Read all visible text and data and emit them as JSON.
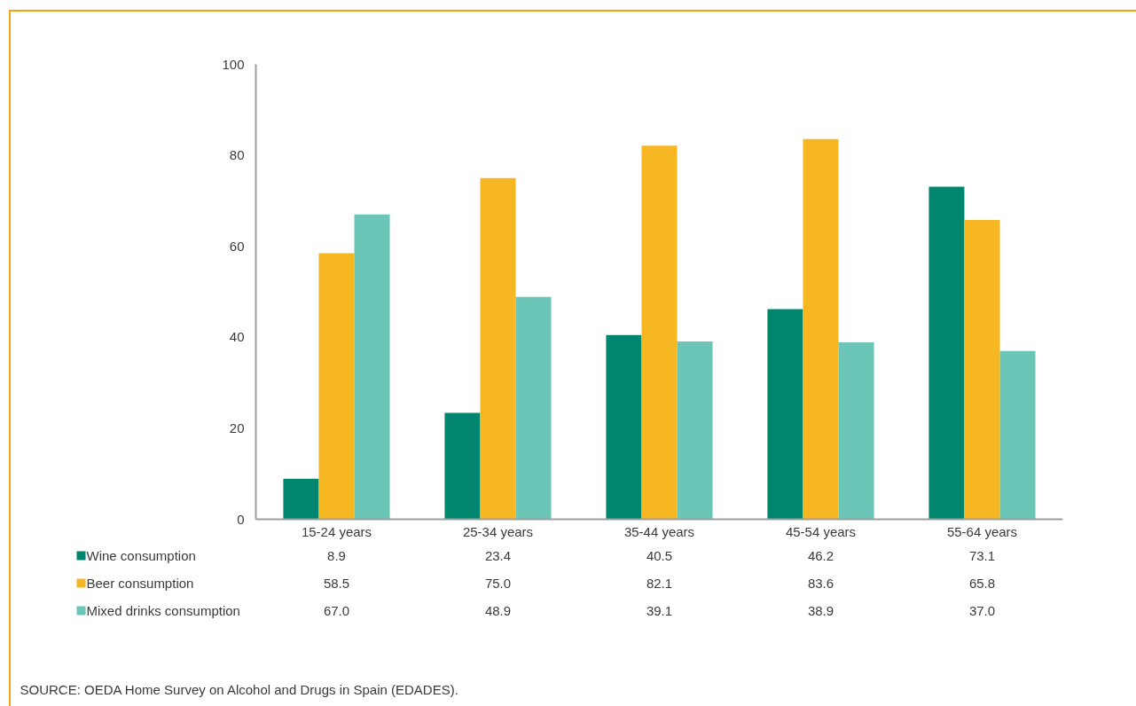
{
  "chart_data": {
    "type": "bar",
    "categories": [
      "15-24 years",
      "25-34 years",
      "35-44 years",
      "45-54 years",
      "55-64 years"
    ],
    "series": [
      {
        "name": "Wine consumption",
        "color": "#00866f",
        "values": [
          8.9,
          23.4,
          40.5,
          46.2,
          73.1
        ],
        "value_labels": [
          "8.9",
          "23.4",
          "40.5",
          "46.2",
          "73.1"
        ]
      },
      {
        "name": "Beer consumption",
        "color": "#f6b723",
        "values": [
          58.5,
          75.0,
          82.1,
          83.6,
          65.8
        ],
        "value_labels": [
          "58.5",
          "75.0",
          "82.1",
          "83.6",
          "65.8"
        ]
      },
      {
        "name": "Mixed drinks consumption",
        "color": "#6bc6b8",
        "values": [
          67.0,
          48.9,
          39.1,
          38.9,
          37.0
        ],
        "value_labels": [
          "67.0",
          "48.9",
          "39.1",
          "38.9",
          "37.0"
        ]
      }
    ],
    "ylim": [
      0,
      100
    ],
    "yticks": [
      0,
      20,
      40,
      60,
      80,
      100
    ],
    "grid": false,
    "legend": "bottom",
    "annotations": [
      "SOURCE: OEDA Home Survey on Alcohol and Drugs in Spain (EDADES)."
    ]
  }
}
